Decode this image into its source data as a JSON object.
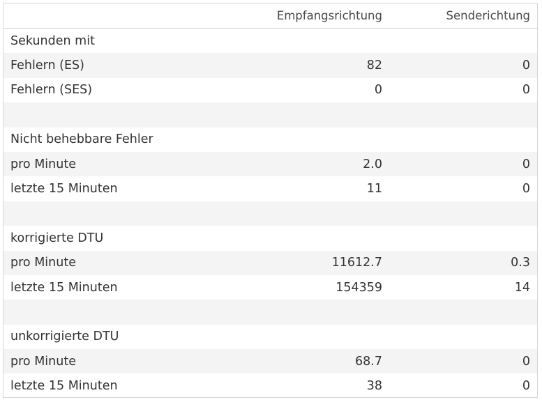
{
  "headers": {
    "label": "",
    "rx": "Empfangsrichtung",
    "tx": "Senderichtung"
  },
  "rows": [
    {
      "label": "Sekunden mit",
      "rx": "",
      "tx": ""
    },
    {
      "label": "Fehlern (ES)",
      "rx": "82",
      "tx": "0"
    },
    {
      "label": "Fehlern (SES)",
      "rx": "0",
      "tx": "0"
    },
    {
      "label": "",
      "rx": "",
      "tx": ""
    },
    {
      "label": "Nicht behebbare Fehler",
      "rx": "",
      "tx": ""
    },
    {
      "label": "pro Minute",
      "rx": "2.0",
      "tx": "0"
    },
    {
      "label": "letzte 15 Minuten",
      "rx": "11",
      "tx": "0"
    },
    {
      "label": "",
      "rx": "",
      "tx": ""
    },
    {
      "label": "korrigierte DTU",
      "rx": "",
      "tx": ""
    },
    {
      "label": "pro Minute",
      "rx": "11612.7",
      "tx": "0.3"
    },
    {
      "label": "letzte 15 Minuten",
      "rx": "154359",
      "tx": "14"
    },
    {
      "label": "",
      "rx": "",
      "tx": ""
    },
    {
      "label": "unkorrigierte DTU",
      "rx": "",
      "tx": ""
    },
    {
      "label": "pro Minute",
      "rx": "68.7",
      "tx": "0"
    },
    {
      "label": "letzte 15 Minuten",
      "rx": "38",
      "tx": "0"
    }
  ]
}
